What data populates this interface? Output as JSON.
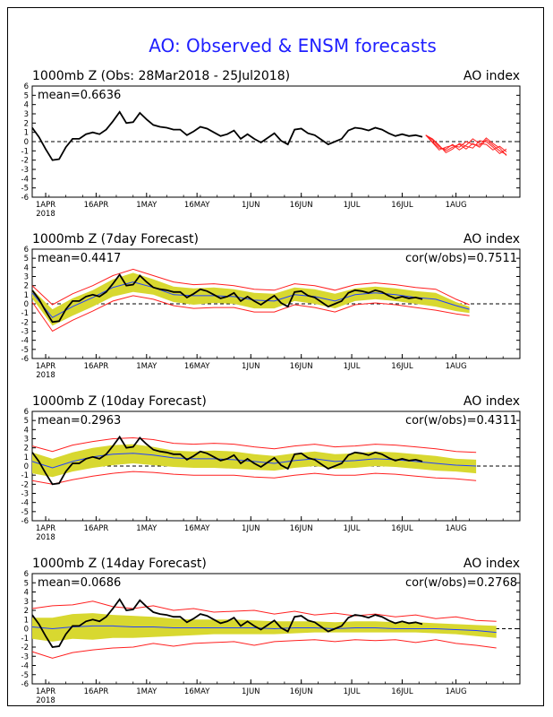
{
  "main_title": "AO: Observed & ENSM forecasts",
  "colors": {
    "title": "#1f1fff",
    "observed": "#000000",
    "forecast": "#ff2020",
    "band": "#d8d830",
    "mean_line": "#2040ff",
    "axis": "#000000"
  },
  "x_ticks": [
    "1APR",
    "16APR",
    "1MAY",
    "16MAY",
    "1JUN",
    "16JUN",
    "1JUL",
    "16JUL",
    "1AUG"
  ],
  "x_year": "2018",
  "y_ticks": [
    "6",
    "5",
    "4",
    "3",
    "2",
    "1",
    "0",
    "-1",
    "-2",
    "-3",
    "-4",
    "-5",
    "-6"
  ],
  "panels": [
    {
      "title": "1000mb Z (Obs: 28Mar2018 - 25Jul2018)",
      "right_label": "AO index",
      "mean": "mean=0.6636",
      "cor": ""
    },
    {
      "title": "1000mb Z (7day Forecast)",
      "right_label": "AO index",
      "mean": "mean=0.4417",
      "cor": "cor(w/obs)=0.7511"
    },
    {
      "title": "1000mb Z (10day Forecast)",
      "right_label": "AO index",
      "mean": "mean=0.2963",
      "cor": "cor(w/obs)=0.4311"
    },
    {
      "title": "1000mb Z (14day Forecast)",
      "right_label": "AO index",
      "mean": "mean=0.0686",
      "cor": "cor(w/obs)=0.2768"
    }
  ],
  "chart_data": {
    "type": "line",
    "x_unit": "day offset from 28 Mar 2018",
    "ylim": [
      -6,
      6
    ],
    "observed": {
      "x": [
        0,
        2,
        4,
        6,
        8,
        10,
        12,
        14,
        16,
        18,
        20,
        22,
        24,
        26,
        28,
        30,
        32,
        34,
        36,
        38,
        40,
        42,
        44,
        46,
        48,
        50,
        52,
        54,
        56,
        58,
        60,
        62,
        64,
        66,
        68,
        70,
        72,
        74,
        76,
        78,
        80,
        82,
        84,
        86,
        88,
        90,
        92,
        94,
        96,
        98,
        100,
        102,
        104,
        106,
        108,
        110,
        112,
        114,
        116,
        118,
        120
      ],
      "y": [
        1.5,
        0.5,
        -0.8,
        -2.0,
        -1.9,
        -0.6,
        0.3,
        0.3,
        0.8,
        1.0,
        0.8,
        1.3,
        2.2,
        3.2,
        2.0,
        2.1,
        3.1,
        2.4,
        1.8,
        1.6,
        1.5,
        1.3,
        1.3,
        0.7,
        1.1,
        1.6,
        1.4,
        1.0,
        0.6,
        0.8,
        1.2,
        0.3,
        0.8,
        0.3,
        -0.1,
        0.4,
        0.9,
        0.1,
        -0.3,
        1.3,
        1.4,
        0.9,
        0.7,
        0.2,
        -0.3,
        0.0,
        0.3,
        1.2,
        1.5,
        1.4,
        1.2,
        1.5,
        1.3,
        0.9,
        0.6,
        0.8,
        0.6,
        0.7,
        0.5,
        null,
        null
      ]
    },
    "ensemble_forecast": {
      "x": [
        117,
        119,
        121,
        123,
        125,
        127,
        129,
        131,
        133,
        135,
        137,
        139,
        141
      ],
      "members": [
        [
          0.7,
          0.2,
          -0.5,
          -1.0,
          -0.6,
          -0.3,
          -0.8,
          -0.2,
          -0.6,
          0.2,
          -0.4,
          -1.0,
          -1.4
        ],
        [
          0.7,
          0.0,
          -0.7,
          -0.8,
          -0.3,
          -0.9,
          -0.4,
          0.3,
          -0.2,
          -0.3,
          -0.9,
          -0.5,
          -1.1
        ],
        [
          0.7,
          0.3,
          -0.4,
          -1.2,
          -0.8,
          -0.2,
          -0.5,
          -0.7,
          0.1,
          0.0,
          -0.6,
          -1.3,
          -0.8
        ],
        [
          0.7,
          -0.1,
          -0.9,
          -0.6,
          -0.4,
          -0.6,
          0.0,
          -0.3,
          -0.4,
          0.4,
          -0.2,
          -0.7,
          -1.5
        ]
      ]
    },
    "forecast_7day": {
      "x": [
        0,
        6,
        12,
        18,
        24,
        30,
        36,
        42,
        48,
        54,
        60,
        66,
        72,
        78,
        84,
        90,
        96,
        102,
        108,
        114,
        120,
        126,
        130
      ],
      "mean": [
        1.2,
        -1.5,
        -0.3,
        0.7,
        1.8,
        2.4,
        1.8,
        1.0,
        0.9,
        0.9,
        0.8,
        0.4,
        0.3,
        1.0,
        0.8,
        0.3,
        1.0,
        1.2,
        1.0,
        0.7,
        0.5,
        -0.2,
        -0.6
      ],
      "lower": [
        0.6,
        -2.4,
        -1.3,
        -0.3,
        0.8,
        1.3,
        1.0,
        0.2,
        -0.1,
        0.1,
        0.0,
        -0.5,
        -0.5,
        0.3,
        0.0,
        -0.5,
        0.3,
        0.5,
        0.3,
        0.0,
        -0.3,
        -0.8,
        -1.0
      ],
      "upper": [
        1.6,
        -0.6,
        0.6,
        1.5,
        2.7,
        3.4,
        2.7,
        1.9,
        1.7,
        1.8,
        1.6,
        1.2,
        1.1,
        1.8,
        1.6,
        1.1,
        1.7,
        1.9,
        1.7,
        1.4,
        1.2,
        0.2,
        -0.3
      ],
      "min": [
        0.2,
        -3.0,
        -1.8,
        -0.8,
        0.3,
        0.9,
        0.5,
        -0.2,
        -0.5,
        -0.4,
        -0.4,
        -0.9,
        -0.9,
        -0.1,
        -0.4,
        -0.9,
        -0.1,
        0.1,
        -0.1,
        -0.4,
        -0.7,
        -1.1,
        -1.3
      ],
      "max": [
        2.0,
        -0.1,
        1.1,
        2.0,
        3.1,
        3.8,
        3.1,
        2.4,
        2.1,
        2.2,
        2.0,
        1.6,
        1.5,
        2.2,
        2.0,
        1.5,
        2.1,
        2.3,
        2.1,
        1.8,
        1.6,
        0.5,
        -0.1
      ]
    },
    "forecast_10day": {
      "x": [
        0,
        6,
        12,
        18,
        24,
        30,
        36,
        42,
        48,
        54,
        60,
        66,
        72,
        78,
        84,
        90,
        96,
        102,
        108,
        114,
        120,
        126,
        132
      ],
      "mean": [
        0.5,
        -0.2,
        0.5,
        1.0,
        1.3,
        1.4,
        1.2,
        0.9,
        0.8,
        0.8,
        0.7,
        0.5,
        0.3,
        0.6,
        0.8,
        0.5,
        0.6,
        0.8,
        0.7,
        0.5,
        0.3,
        0.1,
        0.0
      ],
      "lower": [
        -0.8,
        -1.2,
        -0.6,
        -0.2,
        0.1,
        0.3,
        0.1,
        -0.1,
        -0.2,
        -0.2,
        -0.3,
        -0.4,
        -0.5,
        -0.2,
        0.0,
        -0.3,
        -0.2,
        0.0,
        -0.1,
        -0.3,
        -0.5,
        -0.6,
        -0.8
      ],
      "upper": [
        1.5,
        0.8,
        1.5,
        2.0,
        2.3,
        2.4,
        2.1,
        1.7,
        1.6,
        1.7,
        1.6,
        1.3,
        1.1,
        1.4,
        1.6,
        1.3,
        1.4,
        1.6,
        1.5,
        1.3,
        1.1,
        0.8,
        0.7
      ],
      "min": [
        -1.6,
        -2.0,
        -1.5,
        -1.1,
        -0.8,
        -0.6,
        -0.7,
        -0.9,
        -1.0,
        -1.0,
        -1.0,
        -1.2,
        -1.3,
        -1.0,
        -0.8,
        -1.0,
        -1.0,
        -0.8,
        -0.9,
        -1.1,
        -1.3,
        -1.4,
        -1.6
      ],
      "max": [
        2.2,
        1.6,
        2.3,
        2.7,
        3.0,
        3.1,
        2.9,
        2.5,
        2.4,
        2.5,
        2.4,
        2.1,
        1.9,
        2.2,
        2.4,
        2.1,
        2.2,
        2.4,
        2.3,
        2.1,
        1.9,
        1.6,
        1.5
      ]
    },
    "forecast_14day": {
      "x": [
        0,
        6,
        12,
        18,
        24,
        30,
        36,
        42,
        48,
        54,
        60,
        66,
        72,
        78,
        84,
        90,
        96,
        102,
        108,
        114,
        120,
        126,
        132,
        138
      ],
      "mean": [
        0.2,
        0.0,
        0.2,
        0.3,
        0.3,
        0.2,
        0.2,
        0.1,
        0.1,
        0.1,
        0.1,
        0.1,
        0.0,
        0.1,
        0.1,
        0.0,
        0.1,
        0.1,
        0.0,
        0.0,
        0.0,
        -0.1,
        -0.2,
        -0.4
      ],
      "lower": [
        -1.1,
        -1.4,
        -1.1,
        -1.2,
        -1.0,
        -1.0,
        -0.9,
        -0.8,
        -0.7,
        -0.6,
        -0.6,
        -0.6,
        -0.6,
        -0.5,
        -0.4,
        -0.4,
        -0.4,
        -0.4,
        -0.4,
        -0.4,
        -0.5,
        -0.6,
        -0.8,
        -1.0
      ],
      "upper": [
        1.2,
        1.2,
        1.6,
        1.7,
        1.5,
        1.4,
        1.3,
        1.1,
        1.0,
        1.0,
        1.0,
        0.9,
        0.8,
        0.8,
        0.8,
        0.7,
        0.8,
        0.8,
        0.7,
        0.7,
        0.6,
        0.5,
        0.4,
        0.3
      ],
      "min": [
        -2.5,
        -3.2,
        -2.6,
        -2.3,
        -2.1,
        -2.0,
        -1.6,
        -1.9,
        -1.6,
        -1.5,
        -1.4,
        -1.8,
        -1.4,
        -1.3,
        -1.2,
        -1.4,
        -1.2,
        -1.3,
        -1.2,
        -1.5,
        -1.2,
        -1.6,
        -1.8,
        -2.1
      ],
      "max": [
        2.2,
        2.5,
        2.6,
        3.0,
        2.4,
        2.2,
        2.5,
        2.0,
        2.2,
        1.8,
        1.9,
        2.0,
        1.6,
        1.9,
        1.5,
        1.7,
        1.4,
        1.6,
        1.3,
        1.5,
        1.1,
        1.3,
        0.9,
        0.8
      ]
    }
  }
}
